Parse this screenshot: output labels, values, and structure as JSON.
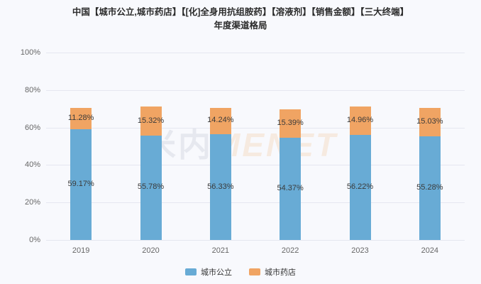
{
  "title": {
    "line1": "中国【城市公立,城市药店】【[化]全身用抗组胺药】【溶液剂】【销售金额】【三大终端】",
    "line2": "年度渠道格局"
  },
  "watermark": {
    "part1": "米内",
    "part2": "MENET"
  },
  "colors": {
    "background": "#f8f9fd",
    "grid": "#e5e7f0",
    "blue": "#68abd5",
    "orange": "#f0a463"
  },
  "chart_data": {
    "type": "bar",
    "stacked": true,
    "categories": [
      "2019",
      "2020",
      "2021",
      "2022",
      "2023",
      "2024"
    ],
    "series": [
      {
        "name": "城市公立",
        "color": "#68abd5",
        "values": [
          59.17,
          55.78,
          56.33,
          54.37,
          56.22,
          55.28
        ]
      },
      {
        "name": "城市药店",
        "color": "#f0a463",
        "values": [
          11.28,
          15.32,
          14.24,
          15.39,
          14.96,
          15.03
        ]
      }
    ],
    "title": "中国【城市公立,城市药店】【[化]全身用抗组胺药】【溶液剂】【销售金额】【三大终端】年度渠道格局",
    "xlabel": "",
    "ylabel": "",
    "ylim": [
      0,
      100
    ],
    "yticks": [
      "0%",
      "20%",
      "40%",
      "60%",
      "80%",
      "100%"
    ],
    "label_format": "percent",
    "grid": true,
    "legend_position": "bottom"
  }
}
